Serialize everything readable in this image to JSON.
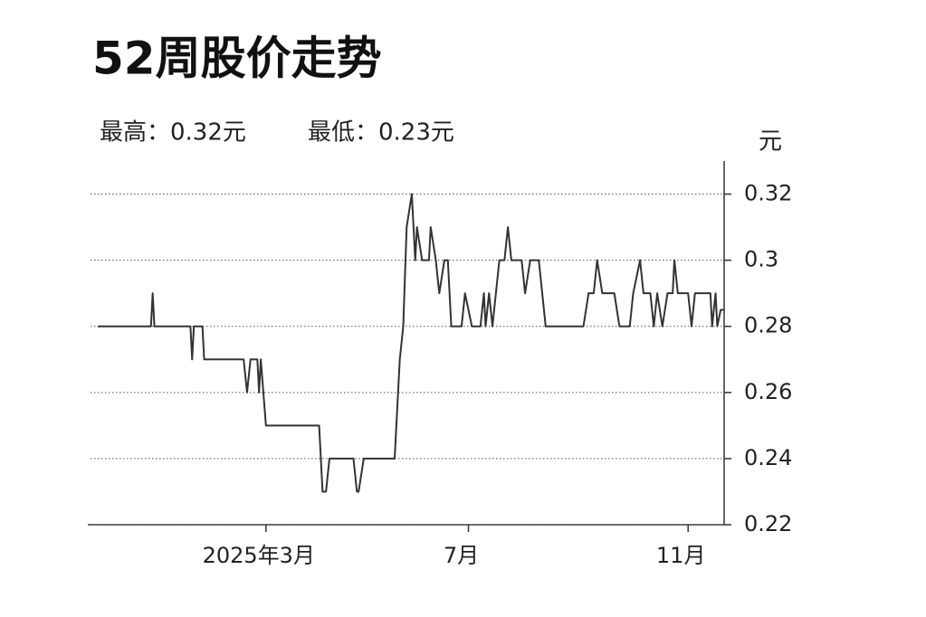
{
  "chart_data": {
    "type": "line",
    "title": "52周股价走势",
    "annotations": [
      "最高：0.32元",
      "最低：0.23元"
    ],
    "y_label": "元",
    "color": "#333333",
    "grid": true,
    "xlim": [
      0,
      365
    ],
    "ylim": [
      0.22,
      0.33
    ],
    "yticks": [
      0.22,
      0.24,
      0.26,
      0.28,
      0.3,
      0.32
    ],
    "xticks": [
      {
        "value": 98,
        "label": "2025年3月"
      },
      {
        "value": 216,
        "label": "7月"
      },
      {
        "value": 344,
        "label": "11月"
      }
    ],
    "x": [
      0,
      31,
      32,
      33,
      54,
      55,
      56,
      61,
      62,
      85,
      87,
      89,
      93,
      94,
      95,
      98,
      129,
      131,
      133,
      135,
      149,
      151,
      152,
      155,
      173,
      176,
      178,
      180,
      183,
      185,
      186,
      189,
      193,
      194,
      197,
      199,
      202,
      204,
      206,
      212,
      214,
      218,
      223,
      225,
      226,
      228,
      230,
      232,
      234,
      237,
      239,
      241,
      247,
      249,
      252,
      257,
      261,
      283,
      286,
      289,
      291,
      294,
      301,
      304,
      310,
      312,
      316,
      318,
      322,
      324,
      326,
      329,
      332,
      335,
      336,
      338,
      344,
      346,
      348,
      357,
      358,
      360,
      361,
      363,
      365
    ],
    "series": [
      {
        "name": "股价",
        "values": [
          0.28,
          0.28,
          0.29,
          0.28,
          0.28,
          0.27,
          0.28,
          0.28,
          0.27,
          0.27,
          0.26,
          0.27,
          0.27,
          0.26,
          0.27,
          0.25,
          0.25,
          0.23,
          0.23,
          0.24,
          0.24,
          0.23,
          0.23,
          0.24,
          0.24,
          0.27,
          0.28,
          0.31,
          0.32,
          0.3,
          0.31,
          0.3,
          0.3,
          0.31,
          0.3,
          0.29,
          0.3,
          0.3,
          0.28,
          0.28,
          0.29,
          0.28,
          0.28,
          0.29,
          0.28,
          0.29,
          0.28,
          0.29,
          0.3,
          0.3,
          0.31,
          0.3,
          0.3,
          0.29,
          0.3,
          0.3,
          0.28,
          0.28,
          0.29,
          0.29,
          0.3,
          0.29,
          0.29,
          0.28,
          0.28,
          0.29,
          0.3,
          0.29,
          0.29,
          0.28,
          0.29,
          0.28,
          0.29,
          0.29,
          0.3,
          0.29,
          0.29,
          0.28,
          0.29,
          0.29,
          0.28,
          0.29,
          0.28,
          0.285,
          0.285
        ]
      }
    ]
  }
}
